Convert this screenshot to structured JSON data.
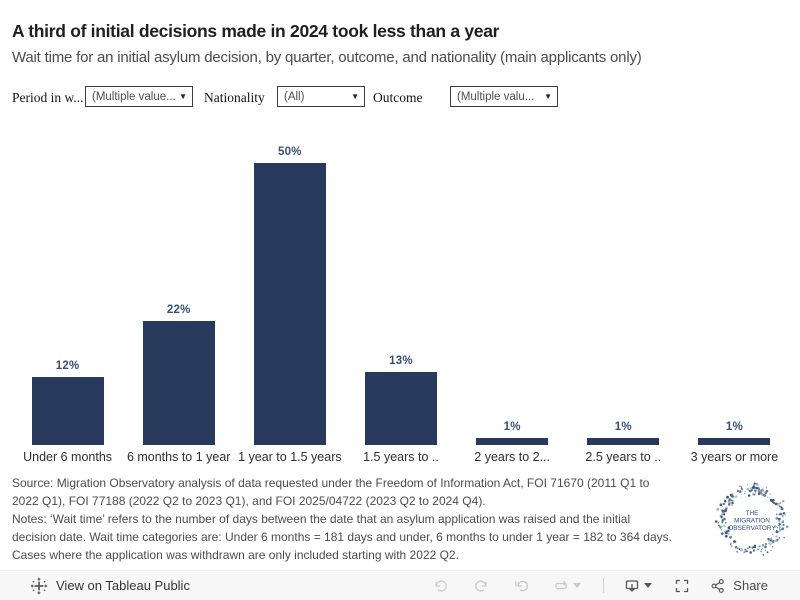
{
  "header": {
    "title": "A third of initial decisions made in 2024 took less than a year",
    "subtitle": "Wait time for an initial asylum decision, by quarter, outcome, and nationality (main applicants only)"
  },
  "filters": {
    "period": {
      "label": "Period in w...",
      "value": "(Multiple value..."
    },
    "nationality": {
      "label": "Nationality",
      "value": "(All)"
    },
    "outcome": {
      "label": "Outcome",
      "value": "(Multiple valu..."
    }
  },
  "icons": {
    "dropdown_caret": "▼"
  },
  "chart_data": {
    "type": "bar",
    "title": "A third of initial decisions made in 2024 took less than a year",
    "subtitle": "Wait time for an initial asylum decision, by quarter, outcome, and nationality (main applicants only)",
    "categories": [
      "Under 6 months",
      "6 months to 1 year",
      "1 year to 1.5 years",
      "1.5 years to ..",
      "2 years to 2...",
      "2.5 years to ..",
      "3 years or more"
    ],
    "values": [
      12,
      22,
      50,
      13,
      1,
      1,
      1
    ],
    "value_labels": [
      "12%",
      "22%",
      "50%",
      "13%",
      "1%",
      "1%",
      "1%"
    ],
    "unit": "percent",
    "bar_color": "#273a5e",
    "label_color": "#3a4e78",
    "ylim": [
      0,
      55
    ],
    "grid": false,
    "axes_hidden": true,
    "legend": "none"
  },
  "footer": {
    "lines": [
      "Source: Migration Observatory analysis of data requested under the Freedom of Information Act, FOI 71670 (2011 Q1 to",
      "2022 Q1), FOI 77188 (2022 Q2 to 2023 Q1), and FOI 2025/04722 (2023 Q2 to 2024 Q4).",
      "Notes: ‘Wait time’ refers to the number of days between the date that an asylum application was raised and the initial",
      "decision date. Wait time categories are: Under 6 months = 181 days and under, 6 months to under 1 year = 182 to 364 days.",
      "Cases where the application was withdrawn are only included starting with 2022 Q2."
    ]
  },
  "logo": {
    "lines": [
      "THE",
      "MIGRATION",
      "OBSERVATORY"
    ],
    "color": "#2d4f78"
  },
  "toolbar": {
    "view_label": "View on Tableau Public",
    "share_label": "Share"
  }
}
